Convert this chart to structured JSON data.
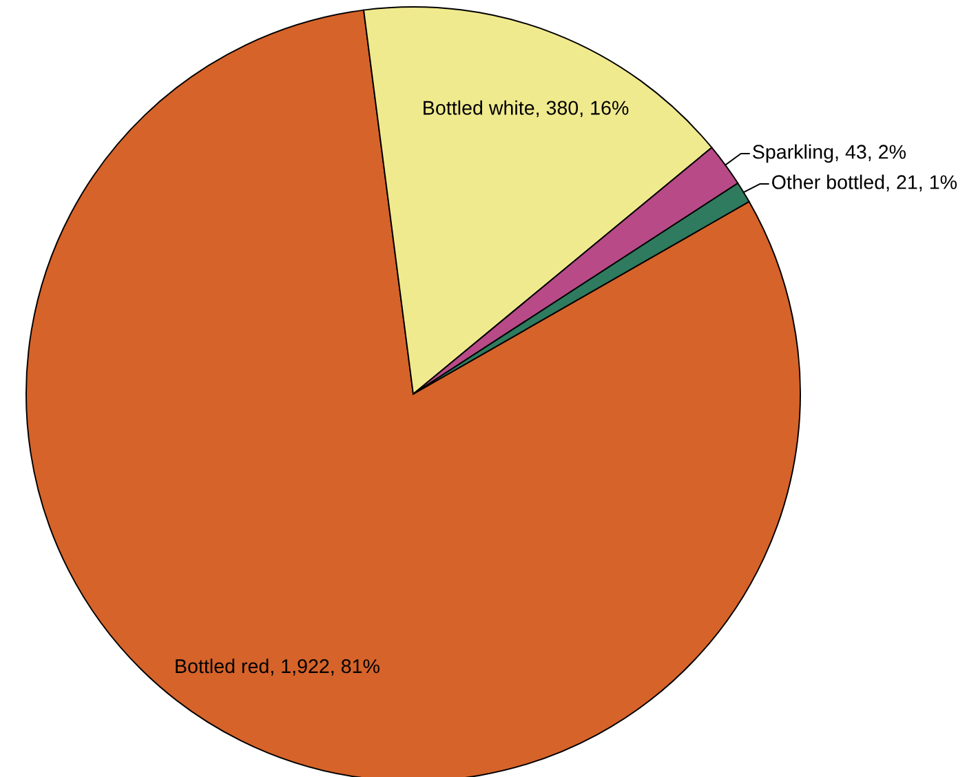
{
  "chart_data": {
    "type": "pie",
    "categories": [
      "Bottled red",
      "Bottled white",
      "Sparkling",
      "Other bottled"
    ],
    "values": [
      1922,
      380,
      43,
      21
    ],
    "colors": [
      "#d6632a",
      "#f0ea8e",
      "#b84a87",
      "#2f7b5f"
    ],
    "value_labels": [
      "1,922, 81%",
      "380, 16%",
      "43, 2%",
      "21, 1%"
    ]
  }
}
